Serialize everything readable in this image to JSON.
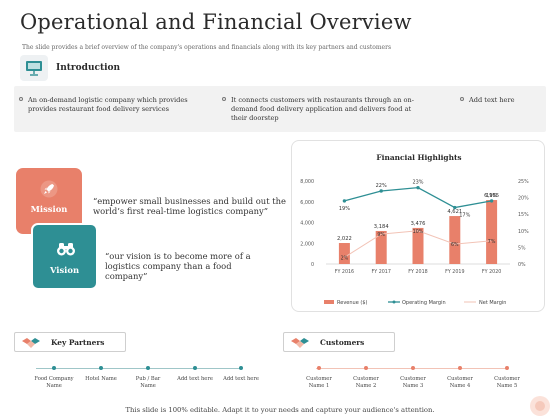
{
  "header": {
    "title": "Operational and Financial Overview",
    "subtitle": "The slide provides a brief overview of the company's operations and financials along with its key partners and customers"
  },
  "intro": {
    "title": "Introduction",
    "icon": "presentation-board-icon",
    "items": [
      "An on-demand logistic company which provides provides restaurant food delivery services",
      "It connects customers with restaurants through an on-demand food delivery application and delivers food at their doorstep",
      "Add text here"
    ]
  },
  "mission": {
    "label": "Mission",
    "icon": "rocket-icon",
    "text": "“empower small businesses and build out the world’s first real-time logistics company”"
  },
  "vision": {
    "label": "Vision",
    "icon": "binoculars-icon",
    "text": "“our vision is to become more of a logistics company than a food company”"
  },
  "chart_data": {
    "type": "bar",
    "title": "Financial Highlights",
    "categories": [
      "FY 2016",
      "FY 2017",
      "FY 2018",
      "FY 2019",
      "FY 2020"
    ],
    "series": [
      {
        "name": "Revenue ($)",
        "kind": "bar",
        "color": "#e8806a",
        "values": [
          2022,
          3184,
          3476,
          4621,
          6165
        ],
        "labels": [
          "2,022",
          "3,184",
          "3,476",
          "4,621",
          "6,165"
        ]
      },
      {
        "name": "Operating Margin",
        "kind": "line",
        "color": "#2e8f94",
        "values": [
          19,
          22,
          23,
          17,
          19
        ],
        "labels": [
          "19%",
          "22%",
          "23%",
          "17%",
          "19%"
        ]
      },
      {
        "name": "Net Margin",
        "kind": "line",
        "color": "#f2c3b6",
        "values": [
          2,
          9,
          10,
          6,
          7
        ],
        "labels": [
          "2%",
          "9%",
          "10%",
          "6%",
          "7%"
        ]
      }
    ],
    "y_left": {
      "ticks": [
        "0",
        "2,000",
        "4,000",
        "6,000",
        "8,000"
      ],
      "range": [
        0,
        8000
      ]
    },
    "y_right": {
      "ticks": [
        "0%",
        "5%",
        "10%",
        "15%",
        "20%",
        "25%"
      ],
      "range": [
        0,
        25
      ]
    },
    "legend_position": "bottom"
  },
  "partners": {
    "title": "Key Partners",
    "icon": "handshake-icon",
    "items": [
      "Food Company Name",
      "Hotel Name",
      "Pub / Bar Name",
      "Add text here",
      "Add text here"
    ],
    "dot_colors": [
      "#2e8f94",
      "#2e8f94",
      "#2e8f94",
      "#2e8f94",
      "#2e8f94"
    ]
  },
  "customers": {
    "title": "Customers",
    "icon": "handshake-icon",
    "items": [
      "Customer Name 1",
      "Customer Name 2",
      "Customer Name 3",
      "Customer Name 4",
      "Customer Name 5"
    ],
    "dot_colors": [
      "#e8806a",
      "#e8806a",
      "#e8806a",
      "#e8806a",
      "#e8806a"
    ]
  },
  "footer": {
    "text": "This slide is 100% editable. Adapt it to your needs and capture your audience's attention."
  },
  "colors": {
    "accent_orange": "#e8806a",
    "accent_teal": "#2e8f94"
  }
}
